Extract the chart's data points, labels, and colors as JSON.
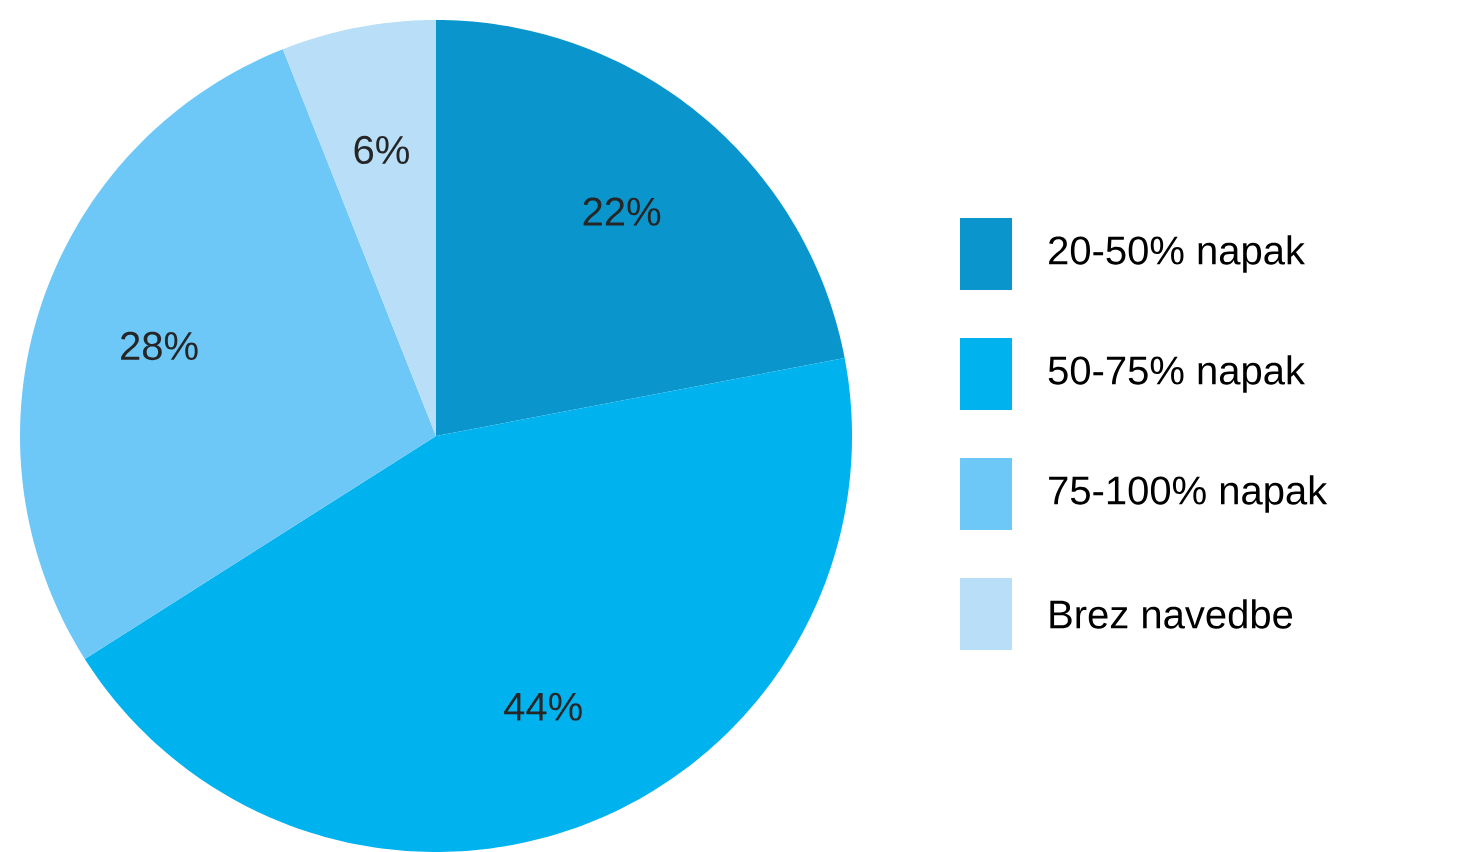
{
  "chart_data": {
    "type": "pie",
    "categories": [
      "20-50% napak",
      "50-75% napak",
      "75-100% napak",
      "Brez navedbe"
    ],
    "values": [
      22,
      44,
      28,
      6
    ],
    "value_labels": [
      "22%",
      "44%",
      "28%",
      "6%"
    ],
    "colors": [
      "#0a96cc",
      "#00b2ee",
      "#6dc8f8",
      "#b8def8"
    ],
    "legend": "right"
  }
}
